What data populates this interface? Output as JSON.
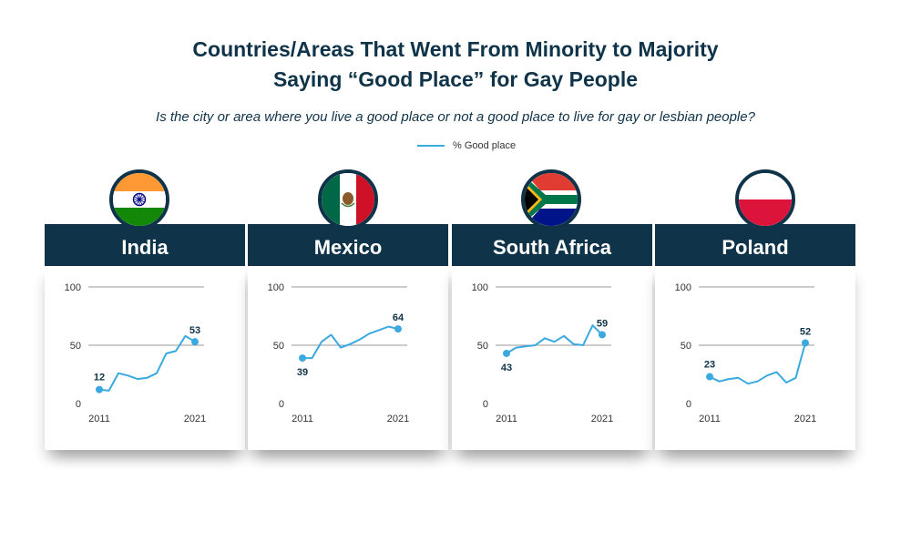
{
  "title_line1": "Countries/Areas That Went From Minority to Majority",
  "title_line2": "Saying “Good Place” for Gay People",
  "subtitle": "Is the city or area where you live a good place or not a good place to live for gay or lesbian people?",
  "legend": {
    "label": "% Good place",
    "color": "#3aa9e0"
  },
  "colors": {
    "header": "#0f3349",
    "line": "#3aa9e0",
    "grid": "#999999"
  },
  "chart_data": [
    {
      "type": "line",
      "title": "India",
      "flag": "india-flag-icon",
      "x": [
        2011,
        2012,
        2013,
        2014,
        2015,
        2016,
        2017,
        2018,
        2019,
        2020,
        2021
      ],
      "ylim": [
        0,
        100
      ],
      "yticks": [
        0,
        50,
        100
      ],
      "xticks": [
        "2011",
        "2021"
      ],
      "series": [
        {
          "name": "% Good place",
          "values": [
            12,
            11,
            26,
            24,
            21,
            22,
            26,
            43,
            45,
            58,
            53
          ]
        }
      ],
      "first_label": "12",
      "last_label": "53"
    },
    {
      "type": "line",
      "title": "Mexico",
      "flag": "mexico-flag-icon",
      "x": [
        2011,
        2012,
        2013,
        2014,
        2015,
        2016,
        2017,
        2018,
        2019,
        2020,
        2021
      ],
      "ylim": [
        0,
        100
      ],
      "yticks": [
        0,
        50,
        100
      ],
      "xticks": [
        "2011",
        "2021"
      ],
      "series": [
        {
          "name": "% Good place",
          "values": [
            39,
            39,
            53,
            59,
            48,
            51,
            55,
            60,
            63,
            66,
            64
          ]
        }
      ],
      "first_label": "39",
      "last_label": "64"
    },
    {
      "type": "line",
      "title": "South Africa",
      "flag": "south-africa-flag-icon",
      "x": [
        2011,
        2012,
        2013,
        2014,
        2015,
        2016,
        2017,
        2018,
        2019,
        2020,
        2021
      ],
      "ylim": [
        0,
        100
      ],
      "yticks": [
        0,
        50,
        100
      ],
      "xticks": [
        "2011",
        "2021"
      ],
      "series": [
        {
          "name": "% Good place",
          "values": [
            43,
            48,
            49,
            50,
            56,
            53,
            58,
            51,
            50,
            67,
            59
          ]
        }
      ],
      "first_label": "43",
      "last_label": "59"
    },
    {
      "type": "line",
      "title": "Poland",
      "flag": "poland-flag-icon",
      "x": [
        2011,
        2012,
        2013,
        2014,
        2015,
        2016,
        2017,
        2018,
        2019,
        2020,
        2021
      ],
      "ylim": [
        0,
        100
      ],
      "yticks": [
        0,
        50,
        100
      ],
      "xticks": [
        "2011",
        "2021"
      ],
      "series": [
        {
          "name": "% Good place",
          "values": [
            23,
            19,
            21,
            22,
            17,
            19,
            24,
            27,
            18,
            22,
            52
          ]
        }
      ],
      "first_label": "23",
      "last_label": "52"
    }
  ]
}
